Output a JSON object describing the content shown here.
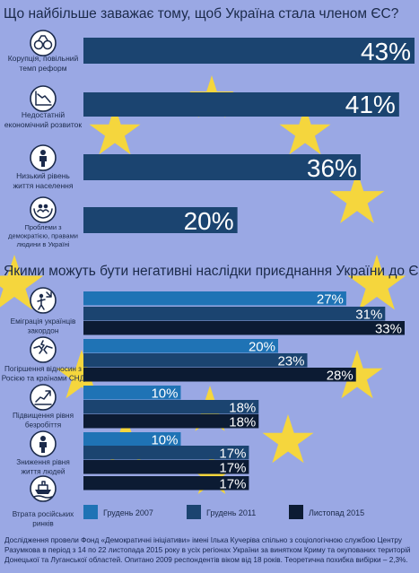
{
  "colors": {
    "background": "#9aa8e4",
    "star": "#f5d63d",
    "bar_dark": "#1b4470",
    "series_2007": "#1f73b5",
    "series_2011": "#1b4470",
    "series_2015": "#0c1b33",
    "icon_fill": "#ffffff",
    "icon_stroke": "#1b2a4a",
    "text_dark": "#1b2a4a"
  },
  "chart_data": [
    {
      "type": "bar",
      "orientation": "horizontal",
      "title": "Що найбільше заважає тому, щоб Україна стала членом ЄС?",
      "categories": [
        "Корупція, повільний темп реформ",
        "Недостатній економічний розвиток",
        "Низький рівень життя населення",
        "Проблеми з демократією, правами людини в Україні"
      ],
      "category_lines": [
        [
          "Корупція, повільний",
          "темп реформ"
        ],
        [
          "Недостатній",
          "економічний розвиток"
        ],
        [
          "Низький рівень",
          "життя населення"
        ],
        [
          "Проблеми з",
          "демократією, правами",
          "людини в Україні"
        ]
      ],
      "category_icons": [
        "handcuffs-icon",
        "declining-graph-icon",
        "person-icon",
        "people-in-hands-icon"
      ],
      "values": [
        43,
        41,
        36,
        20
      ],
      "value_labels": [
        "43%",
        "41%",
        "36%",
        "20%"
      ],
      "unit": "%",
      "xlim": [
        0,
        43
      ]
    },
    {
      "type": "bar",
      "orientation": "horizontal",
      "title": "Якими можуть бути негативні наслідки приєднання України до ЄС?",
      "categories": [
        "Еміграція українців закордон",
        "Погіршення відносин з Росією та країнами СНД",
        "Підвищення рівня безробіття",
        "Зниження рівня життя людей",
        "Втрата російських ринків"
      ],
      "category_lines": [
        [
          "Еміграція українців",
          "закордон"
        ],
        [
          "Погіршення відносин з",
          "Росією та країнами СНД"
        ],
        [
          "Підвищення рівня",
          "безробіття"
        ],
        [
          "Зниження рівня",
          "життя людей"
        ],
        [
          "Втрата російських",
          "ринків"
        ]
      ],
      "category_icons": [
        "emigration-icon",
        "broken-handshake-icon",
        "growth-arrow-icon",
        "person-icon",
        "ship-icon"
      ],
      "series": [
        {
          "name": "Грудень 2007",
          "values": [
            27,
            20,
            10,
            10,
            null
          ],
          "labels": [
            "27%",
            "20%",
            "10%",
            "10%",
            ""
          ]
        },
        {
          "name": "Грудень 2011",
          "values": [
            31,
            23,
            18,
            17,
            null
          ],
          "labels": [
            "31%",
            "23%",
            "18%",
            "17%",
            ""
          ]
        },
        {
          "name": "Листопад 2015",
          "values": [
            33,
            28,
            18,
            17,
            17
          ],
          "labels": [
            "33%",
            "28%",
            "18%",
            "17%",
            "17%"
          ]
        }
      ],
      "unit": "%",
      "xlim": [
        0,
        33
      ],
      "legend": {
        "position": "bottom",
        "items": [
          "Грудень 2007",
          "Грудень 2011",
          "Листопад 2015"
        ]
      }
    }
  ],
  "footnote": "Дослідження провели Фонд «Демократичні ініціативи» імені Ілька Кучеріва спільно з соціологічною службою Центру Разумкова в період з 14 по 22 листопада 2015 року в усіх регіонах України за винятком Криму та окупованих територій Донецької та Луганської областей. Опитано 2009 респондентів віком від 18 років. Теоретична похибка вибірки – 2,3%."
}
